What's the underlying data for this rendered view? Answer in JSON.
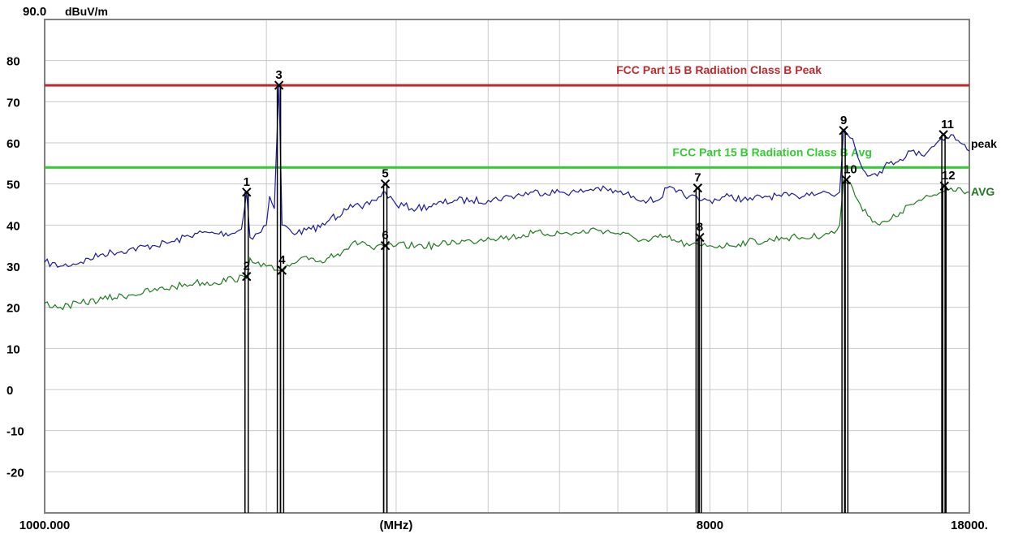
{
  "chart_data": {
    "type": "line",
    "title": "",
    "ylabel": "dBuV/m",
    "xlabel": "(MHz)",
    "ylim": [
      -30,
      90
    ],
    "y_top_label": "90.0",
    "y_ticks": [
      "80",
      "70",
      "60",
      "50",
      "40",
      "30",
      "20",
      "10",
      "0",
      "-10",
      "-20"
    ],
    "x_scale": "log",
    "xlim": [
      1000,
      18000
    ],
    "x_tick_labels": [
      {
        "value": 1000,
        "text": "1000.000"
      },
      {
        "value": 3000,
        "text": "(MHz)"
      },
      {
        "value": 8000,
        "text": "8000"
      },
      {
        "value": 18000,
        "text": "18000."
      }
    ],
    "grid": true,
    "limit_lines": [
      {
        "name": "FCC Part 15 B Radiation Class B Peak",
        "value": 74,
        "color": "#c0282d"
      },
      {
        "name": "FCC Part 15 B Radiation Class B Avg",
        "value": 54,
        "color": "#33cc33"
      }
    ],
    "series": [
      {
        "name": "peak",
        "color": "#1a1a9c",
        "x": [
          1000,
          1050,
          1120,
          1200,
          1300,
          1400,
          1500,
          1600,
          1700,
          1800,
          1850,
          1880,
          1900,
          1950,
          2000,
          2020,
          2050,
          2080,
          2100,
          2150,
          2200,
          2300,
          2400,
          2450,
          2500,
          2550,
          2600,
          2700,
          2800,
          2900,
          3000,
          3200,
          3400,
          3600,
          3800,
          4000,
          4300,
          4600,
          5000,
          5300,
          5600,
          6000,
          6300,
          6600,
          6800,
          7000,
          7200,
          7500,
          7800,
          8000,
          8500,
          9000,
          9500,
          10000,
          10500,
          11000,
          11500,
          11800,
          12000,
          12150,
          12300,
          12500,
          12800,
          13200,
          13600,
          14000,
          14500,
          15000,
          15500,
          16000,
          16500,
          17000,
          17500,
          18000
        ],
        "y": [
          31,
          30,
          31,
          33,
          34,
          35,
          36,
          38,
          38,
          38,
          39,
          48,
          37,
          38,
          40,
          47,
          44,
          74,
          40,
          39,
          38,
          39,
          40,
          42,
          42,
          44,
          45,
          44,
          46,
          48,
          45,
          44,
          45,
          46,
          46,
          46,
          47,
          48,
          48,
          48,
          49,
          48,
          47,
          46,
          46,
          49,
          48,
          47,
          46,
          46,
          47,
          46,
          47,
          47,
          47,
          48,
          48,
          47,
          48,
          63,
          62,
          61,
          55,
          52,
          53,
          55,
          56,
          58,
          57,
          59,
          61,
          62,
          60,
          58
        ]
      },
      {
        "name": "AVG",
        "color": "#1e7b1e",
        "x": [
          1000,
          1050,
          1120,
          1200,
          1300,
          1400,
          1500,
          1600,
          1700,
          1800,
          1880,
          1900,
          1950,
          2000,
          2050,
          2080,
          2100,
          2150,
          2200,
          2300,
          2400,
          2450,
          2500,
          2550,
          2600,
          2700,
          2800,
          2900,
          3000,
          3200,
          3400,
          3600,
          3800,
          4000,
          4300,
          4600,
          5000,
          5300,
          5600,
          6000,
          6300,
          6600,
          6800,
          7000,
          7200,
          7500,
          7800,
          8000,
          8500,
          9000,
          9500,
          10000,
          10500,
          11000,
          11500,
          11800,
          12000,
          12150,
          12300,
          12500,
          12800,
          13200,
          13600,
          14000,
          14500,
          15000,
          15500,
          16000,
          16500,
          17000,
          17500,
          18000
        ],
        "y": [
          21,
          20,
          21,
          22,
          23,
          24,
          25,
          26,
          26,
          27,
          27,
          32,
          31,
          30,
          29,
          29,
          29,
          30,
          31,
          32,
          31,
          33,
          33,
          34,
          35,
          36,
          34,
          35,
          35,
          35,
          35,
          36,
          36,
          37,
          37,
          38,
          38,
          38,
          39,
          38,
          37,
          36,
          37,
          37,
          36,
          35,
          35,
          35,
          35,
          36,
          36,
          37,
          37,
          37,
          38,
          38,
          40,
          51,
          50,
          49,
          45,
          42,
          40,
          41,
          43,
          45,
          46,
          47,
          48,
          49,
          49,
          48
        ]
      }
    ],
    "markers": [
      {
        "label": "1",
        "x": 1880,
        "y": 48
      },
      {
        "label": "2",
        "x": 1880,
        "y": 27.5
      },
      {
        "label": "3",
        "x": 2080,
        "y": 74
      },
      {
        "label": "4",
        "x": 2100,
        "y": 29
      },
      {
        "label": "5",
        "x": 2900,
        "y": 50
      },
      {
        "label": "6",
        "x": 2900,
        "y": 35
      },
      {
        "label": "7",
        "x": 7700,
        "y": 49
      },
      {
        "label": "8",
        "x": 7750,
        "y": 37
      },
      {
        "label": "9",
        "x": 12150,
        "y": 63
      },
      {
        "label": "10",
        "x": 12250,
        "y": 51
      },
      {
        "label": "11",
        "x": 16600,
        "y": 62
      },
      {
        "label": "12",
        "x": 16650,
        "y": 49.5
      }
    ]
  }
}
